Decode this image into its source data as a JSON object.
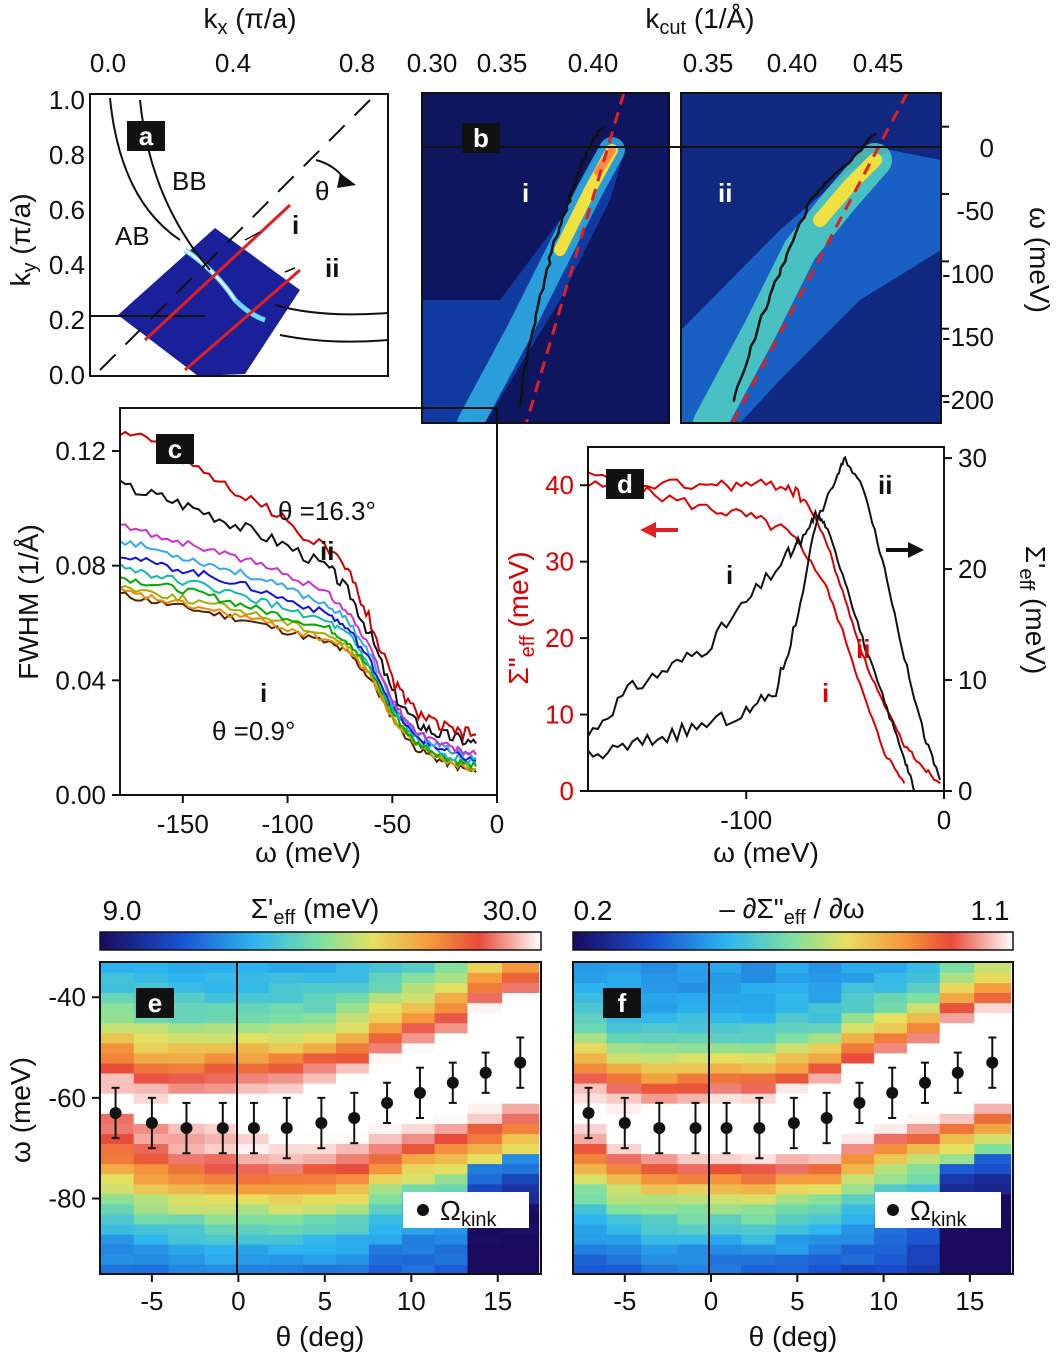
{
  "panel_labels": [
    "a",
    "b",
    "c",
    "d",
    "e",
    "f"
  ],
  "chart_data": [
    {
      "panel": "a",
      "type": "other",
      "x_axis": {
        "label": "k_x (π/a)",
        "ticks": [
          "0.0",
          "0.4",
          "0.8"
        ],
        "range": [
          0.0,
          1.0
        ],
        "position": "top"
      },
      "y_axis": {
        "label": "k_y (π/a)",
        "ticks": [
          "0.0",
          "0.2",
          "0.4",
          "0.6",
          "0.8",
          "1.0"
        ],
        "range": [
          0.0,
          1.0
        ]
      },
      "annotations": [
        "BB",
        "AB",
        "θ",
        "i",
        "ii"
      ]
    },
    {
      "panel": "b",
      "type": "heatmap",
      "x_axis_left": {
        "label": "k_cut (1/Å)",
        "ticks": [
          "0.30",
          "0.35",
          "0.40"
        ],
        "range": [
          0.3,
          0.43
        ]
      },
      "x_axis_right": {
        "ticks": [
          "0.35",
          "0.40",
          "0.45"
        ],
        "range": [
          0.32,
          0.48
        ]
      },
      "y_axis": {
        "label": "ω (meV)",
        "ticks": [
          "0",
          "-50",
          "-100",
          "-150",
          "-200"
        ],
        "range": [
          -220,
          25
        ],
        "position": "right"
      },
      "cuts": [
        "i",
        "ii"
      ],
      "cut_i_dispersion": {
        "k": [
          0.395,
          0.39,
          0.385,
          0.38,
          0.375,
          0.37,
          0.365,
          0.36,
          0.355,
          0.35
        ],
        "omega": [
          0,
          -10,
          -25,
          -45,
          -65,
          -85,
          -110,
          -140,
          -175,
          -215
        ]
      },
      "cut_ii_dispersion": {
        "k": [
          0.44,
          0.435,
          0.425,
          0.41,
          0.4,
          0.39,
          0.38,
          0.37,
          0.36,
          0.35
        ],
        "omega": [
          -5,
          -10,
          -25,
          -40,
          -55,
          -80,
          -110,
          -140,
          -175,
          -210
        ]
      }
    },
    {
      "panel": "c",
      "type": "line",
      "xlabel": "ω (meV)",
      "ylabel": "FWHM (1/Å)",
      "x_ticks": [
        "-150",
        "-100",
        "-50",
        "0"
      ],
      "y_ticks": [
        "0.00",
        "0.04",
        "0.08",
        "0.12"
      ],
      "xlim": [
        -180,
        0
      ],
      "ylim": [
        0.0,
        0.135
      ],
      "annotations": [
        "θ =16.3°",
        "ii",
        "i",
        "θ =0.9°"
      ],
      "x": [
        -180,
        -160,
        -140,
        -120,
        -100,
        -80,
        -70,
        -60,
        -50,
        -40,
        -30,
        -20,
        -10
      ],
      "series": [
        {
          "color": "#cc0000",
          "values": [
            0.127,
            0.122,
            0.113,
            0.104,
            0.095,
            0.085,
            0.077,
            0.06,
            0.04,
            0.03,
            0.025,
            0.022,
            0.021
          ]
        },
        {
          "color": "#111111",
          "values": [
            0.108,
            0.104,
            0.099,
            0.093,
            0.087,
            0.079,
            0.07,
            0.055,
            0.036,
            0.026,
            0.022,
            0.02,
            0.018
          ]
        },
        {
          "color": "#cc33cc",
          "values": [
            0.094,
            0.09,
            0.086,
            0.082,
            0.077,
            0.07,
            0.063,
            0.05,
            0.033,
            0.023,
            0.019,
            0.016,
            0.014
          ]
        },
        {
          "color": "#33aaee",
          "values": [
            0.089,
            0.085,
            0.081,
            0.077,
            0.072,
            0.066,
            0.06,
            0.048,
            0.032,
            0.022,
            0.018,
            0.015,
            0.013
          ]
        },
        {
          "color": "#1111dd",
          "values": [
            0.084,
            0.08,
            0.077,
            0.073,
            0.068,
            0.063,
            0.057,
            0.046,
            0.031,
            0.021,
            0.017,
            0.014,
            0.012
          ]
        },
        {
          "color": "#11bbaa",
          "values": [
            0.08,
            0.076,
            0.073,
            0.069,
            0.065,
            0.06,
            0.055,
            0.044,
            0.03,
            0.02,
            0.016,
            0.013,
            0.011
          ]
        },
        {
          "color": "#00aa00",
          "values": [
            0.076,
            0.073,
            0.07,
            0.066,
            0.062,
            0.058,
            0.053,
            0.043,
            0.029,
            0.019,
            0.015,
            0.012,
            0.01
          ]
        },
        {
          "color": "#aaaa00",
          "values": [
            0.073,
            0.07,
            0.067,
            0.064,
            0.06,
            0.056,
            0.051,
            0.042,
            0.028,
            0.018,
            0.014,
            0.011,
            0.009
          ]
        },
        {
          "color": "#ee8800",
          "values": [
            0.071,
            0.068,
            0.065,
            0.062,
            0.058,
            0.054,
            0.05,
            0.041,
            0.027,
            0.018,
            0.014,
            0.011,
            0.009
          ]
        },
        {
          "color": "#552200",
          "values": [
            0.07,
            0.067,
            0.064,
            0.061,
            0.057,
            0.053,
            0.049,
            0.04,
            0.027,
            0.017,
            0.013,
            0.01,
            0.008
          ]
        }
      ]
    },
    {
      "panel": "d",
      "type": "line",
      "xlabel": "ω (meV)",
      "ylabel_left": "Σ\"_eff (meV)",
      "ylabel_right": "Σ'_eff (meV)",
      "x_ticks": [
        "-100",
        "0"
      ],
      "y_ticks_left": [
        "0",
        "10",
        "20",
        "30",
        "40"
      ],
      "y_ticks_right": [
        "0",
        "10",
        "20",
        "30"
      ],
      "xlim": [
        -180,
        0
      ],
      "ylim_left": [
        0,
        45
      ],
      "ylim_right": [
        0,
        31
      ],
      "annotations": [
        "ii",
        "i",
        "i",
        "ii"
      ],
      "series": [
        {
          "axis": "left",
          "color": "#dd0000",
          "label": "i",
          "x": [
            -180,
            -150,
            -120,
            -100,
            -80,
            -70,
            -60,
            -50,
            -40,
            -30,
            -20
          ],
          "values": [
            40,
            39,
            37,
            36,
            34,
            31,
            27,
            20,
            12,
            5,
            1
          ]
        },
        {
          "axis": "left",
          "color": "#dd0000",
          "label": "ii",
          "x": [
            -180,
            -150,
            -120,
            -100,
            -80,
            -70,
            -60,
            -50,
            -40,
            -30,
            -20,
            -10,
            -2
          ],
          "values": [
            41,
            40,
            40,
            40,
            40,
            38,
            33,
            25,
            17,
            11,
            6,
            3,
            1
          ]
        },
        {
          "axis": "right",
          "color": "#111111",
          "label": "i",
          "x": [
            -180,
            -160,
            -140,
            -120,
            -100,
            -80,
            -70,
            -65,
            -60,
            -50,
            -40,
            -30,
            -20,
            -15
          ],
          "values": [
            5,
            9,
            11,
            13,
            17,
            21,
            23,
            25,
            24,
            19,
            13,
            8,
            3,
            0
          ]
        },
        {
          "axis": "right",
          "color": "#111111",
          "label": "ii",
          "x": [
            -180,
            -160,
            -140,
            -120,
            -100,
            -85,
            -75,
            -65,
            -55,
            -50,
            -40,
            -30,
            -20,
            -10,
            -2
          ],
          "values": [
            3,
            4,
            5,
            6,
            7,
            9,
            15,
            24,
            28,
            30,
            27,
            20,
            12,
            5,
            1
          ]
        }
      ]
    },
    {
      "panel": "e",
      "type": "heatmap",
      "colorbar": {
        "label": "Σ'_eff (meV)",
        "min": "9.0",
        "max": "30.0"
      },
      "xlabel": "θ (deg)",
      "ylabel": "ω (meV)",
      "x_ticks": [
        "-5",
        "0",
        "5",
        "10",
        "15"
      ],
      "y_ticks": [
        "-40",
        "-60",
        "-80"
      ],
      "xlim": [
        -8,
        17.5
      ],
      "ylim": [
        -95,
        -33
      ],
      "legend": "Ω_kink",
      "kink_points": {
        "theta": [
          -7.1,
          -5.0,
          -3.0,
          -0.9,
          0.9,
          2.8,
          4.8,
          6.7,
          8.6,
          10.5,
          12.4,
          14.3,
          16.3
        ],
        "omega": [
          -63,
          -65,
          -66,
          -66,
          -66,
          -66,
          -65,
          -64,
          -61,
          -59,
          -57,
          -55,
          -53
        ],
        "err": [
          5,
          5,
          5,
          5,
          5,
          6,
          5,
          5,
          4,
          5,
          4,
          4,
          5
        ]
      }
    },
    {
      "panel": "f",
      "type": "heatmap",
      "colorbar": {
        "label": "– ∂Σ\"_eff / ∂ω",
        "min": "0.2",
        "max": "1.1"
      },
      "xlabel": "θ (deg)",
      "x_ticks": [
        "-5",
        "0",
        "5",
        "10",
        "15"
      ],
      "xlim": [
        -8,
        17.5
      ],
      "ylim": [
        -95,
        -33
      ],
      "legend": "Ω_kink",
      "kink_points": {
        "theta": [
          -7.1,
          -5.0,
          -3.0,
          -0.9,
          0.9,
          2.8,
          4.8,
          6.7,
          8.6,
          10.5,
          12.4,
          14.3,
          16.3
        ],
        "omega": [
          -63,
          -65,
          -66,
          -66,
          -66,
          -66,
          -65,
          -64,
          -61,
          -59,
          -57,
          -55,
          -53
        ],
        "err": [
          5,
          5,
          5,
          5,
          5,
          6,
          5,
          5,
          4,
          5,
          4,
          4,
          5
        ]
      }
    }
  ]
}
